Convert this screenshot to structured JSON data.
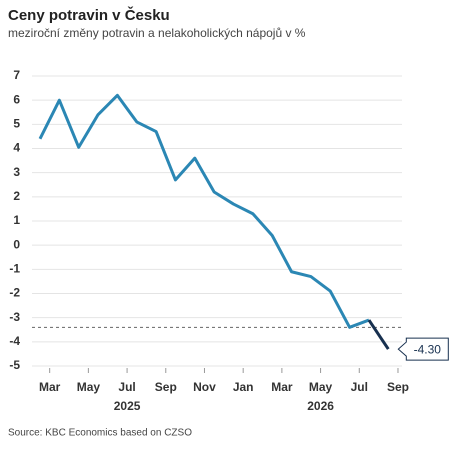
{
  "chart_data": {
    "type": "line",
    "title": "Ceny potravin v Česku",
    "subtitle": "meziroční změny potravin a nelakoholických nápojů  v %",
    "source": "Source: KBC Economics based on CZSO",
    "x": [
      "2025-02",
      "2025-03",
      "2025-04",
      "2025-05",
      "2025-06",
      "2025-07",
      "2025-08",
      "2025-09",
      "2025-10",
      "2025-11",
      "2025-12",
      "2026-01",
      "2026-02",
      "2026-03",
      "2026-04",
      "2026-05",
      "2026-06",
      "2026-07",
      "2026-08"
    ],
    "series": [
      {
        "color": "#2b87b4",
        "highlight_color": "#17304f",
        "values": [
          4.4,
          6.0,
          4.05,
          5.4,
          6.2,
          5.1,
          4.7,
          2.7,
          3.6,
          2.2,
          1.7,
          1.3,
          0.4,
          -1.1,
          -1.3,
          -1.9,
          -3.4,
          -3.1,
          -4.3
        ],
        "value_labels": [
          null,
          null,
          null,
          null,
          null,
          null,
          null,
          null,
          null,
          null,
          null,
          null,
          null,
          null,
          null,
          null,
          null,
          null,
          "-4.30"
        ]
      }
    ],
    "reference_line": -3.4,
    "ylim": [
      -5,
      7
    ],
    "yticks": [
      -5,
      -4,
      -3,
      -2,
      -1,
      0,
      1,
      2,
      3,
      4,
      5,
      6,
      7
    ],
    "xticks": [
      {
        "value": "2025-03",
        "label": "Mar"
      },
      {
        "value": "2025-05",
        "label": "May"
      },
      {
        "value": "2025-07",
        "label": "Jul"
      },
      {
        "value": "2025-09",
        "label": "Sep"
      },
      {
        "value": "2025-11",
        "label": "Nov"
      },
      {
        "value": "2026-01",
        "label": "Jan"
      },
      {
        "value": "2026-03",
        "label": "Mar"
      },
      {
        "value": "2026-05",
        "label": "May"
      },
      {
        "value": "2026-07",
        "label": "Jul"
      },
      {
        "value": "2026-09",
        "label": "Sep"
      }
    ],
    "year_labels": [
      {
        "value": "2025-07",
        "label": "2025"
      },
      {
        "value": "2026-05",
        "label": "2026"
      }
    ],
    "grid": true
  }
}
